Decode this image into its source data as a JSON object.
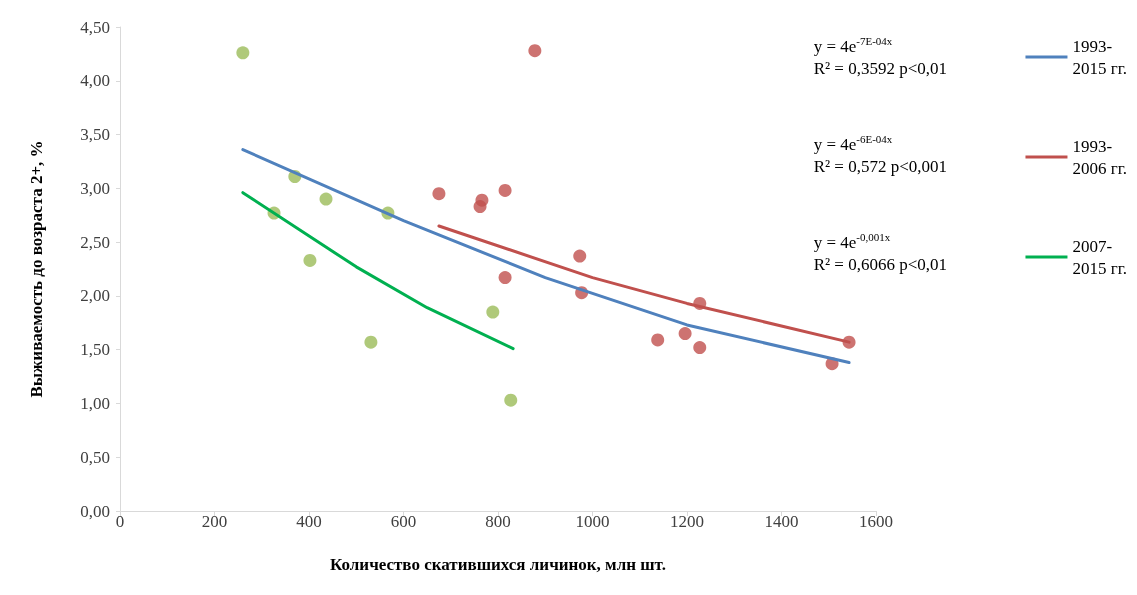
{
  "chart_data": {
    "type": "scatter",
    "xlabel": "Количество скатившихся личинок, млн шт.",
    "ylabel": "Выживаемость до возраста 2+, %",
    "xlim": [
      0,
      1600
    ],
    "xticks": [
      0,
      200,
      400,
      600,
      800,
      1000,
      1200,
      1400,
      1600
    ],
    "ylim": [
      0,
      4.5
    ],
    "yticks": [
      {
        "value": 0,
        "label": "0,00"
      },
      {
        "value": 0.5,
        "label": "0,50"
      },
      {
        "value": 1,
        "label": "1,00"
      },
      {
        "value": 1.5,
        "label": "1,50"
      },
      {
        "value": 2,
        "label": "2,00"
      },
      {
        "value": 2.5,
        "label": "2,50"
      },
      {
        "value": 3,
        "label": "3,00"
      },
      {
        "value": 3.5,
        "label": "3,50"
      },
      {
        "value": 4,
        "label": "4,00"
      },
      {
        "value": 4.5,
        "label": "4,50"
      }
    ],
    "grid": false,
    "legend": "right",
    "series": [
      {
        "marker": "circle",
        "color": "#9bbb59",
        "x": [
          260,
          370,
          436,
          326,
          402,
          567,
          531,
          789,
          827
        ],
        "values": [
          4.26,
          3.11,
          2.9,
          2.77,
          2.33,
          2.77,
          1.57,
          1.85,
          1.03
        ]
      },
      {
        "marker": "circle",
        "color": "#c0504e",
        "x": [
          878,
          675,
          766,
          762,
          815,
          815,
          973,
          977,
          1138,
          1196,
          1227,
          1227,
          1543,
          1507
        ],
        "values": [
          4.28,
          2.95,
          2.89,
          2.83,
          2.98,
          2.17,
          2.37,
          2.03,
          1.59,
          1.65,
          1.93,
          1.52,
          1.57,
          1.37
        ]
      },
      {
        "type": "line",
        "name": "1993-\n2015 гг.",
        "color": "#4f81bd",
        "marker": "none",
        "x": [
          260,
          600,
          900,
          1200,
          1543
        ],
        "values": [
          3.36,
          2.7,
          2.17,
          1.73,
          1.38
        ]
      },
      {
        "type": "line",
        "name": "1993-\n2006 гг.",
        "color": "#c0504d",
        "marker": "none",
        "x": [
          675,
          1000,
          1200,
          1543
        ],
        "values": [
          2.65,
          2.17,
          1.93,
          1.57
        ]
      },
      {
        "type": "line",
        "name": "2007-\n2015 гг.",
        "color": "#00b050",
        "marker": "none",
        "x": [
          260,
          500,
          650,
          832
        ],
        "values": [
          2.96,
          2.27,
          1.89,
          1.51
        ]
      }
    ],
    "annotations": [
      "y = 4e$^{-7E-04x}$\nR² = 0,3592 p<0,01",
      "y = 4e$^{-6E-04x}$\nR² = 0,572 p<0,001",
      "y = 4e$^{-0,001x}$\nR² = 0,6066 p<0,01"
    ]
  }
}
